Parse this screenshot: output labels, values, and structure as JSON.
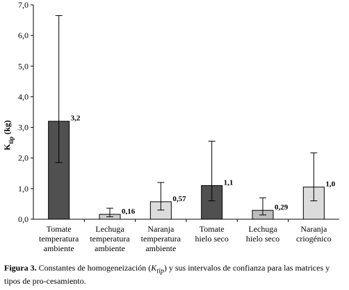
{
  "chart_data": {
    "type": "bar",
    "categories": [
      [
        "Tomate",
        "temperatura",
        "ambiente"
      ],
      [
        "Lechuga",
        "temperatura",
        "ambiente"
      ],
      [
        "Naranja",
        "temperatura",
        "ambiente"
      ],
      [
        "Tomate",
        "hielo seco"
      ],
      [
        "Lechuga",
        "hielo seco"
      ],
      [
        "Naranja",
        "criogénico"
      ]
    ],
    "values": [
      3.2,
      0.16,
      0.57,
      1.1,
      0.29,
      1.05
    ],
    "data_labels": [
      "3,2",
      "0,16",
      "0,57",
      "1,1",
      "0,29",
      "1,0"
    ],
    "error_low": [
      1.85,
      0.08,
      0.3,
      0.6,
      0.14,
      0.6
    ],
    "error_high": [
      6.65,
      0.36,
      1.2,
      2.55,
      0.7,
      2.17
    ],
    "bar_fills": [
      "#505050",
      "#cfcfcf",
      "#dcdcdc",
      "#505050",
      "#bdbdbd",
      "#dcdcdc"
    ],
    "ylabel_main": "K",
    "ylabel_sub": "tip",
    "ylabel_unit": " (kg)",
    "ylim": [
      0,
      7
    ],
    "yticks": [
      "0,0",
      "1,0",
      "2,0",
      "3,0",
      "4,0",
      "5,0",
      "6,0",
      "7,0"
    ],
    "legend": "none",
    "grid": false
  },
  "caption": {
    "figure_label": "Figura 3.",
    "text_before": " Constantes de homogeneización (",
    "k_main": "K",
    "k_sub": "tip",
    "text_after": ") y sus intervalos de confianza para las matrices y tipos de pro-cesamiento."
  }
}
